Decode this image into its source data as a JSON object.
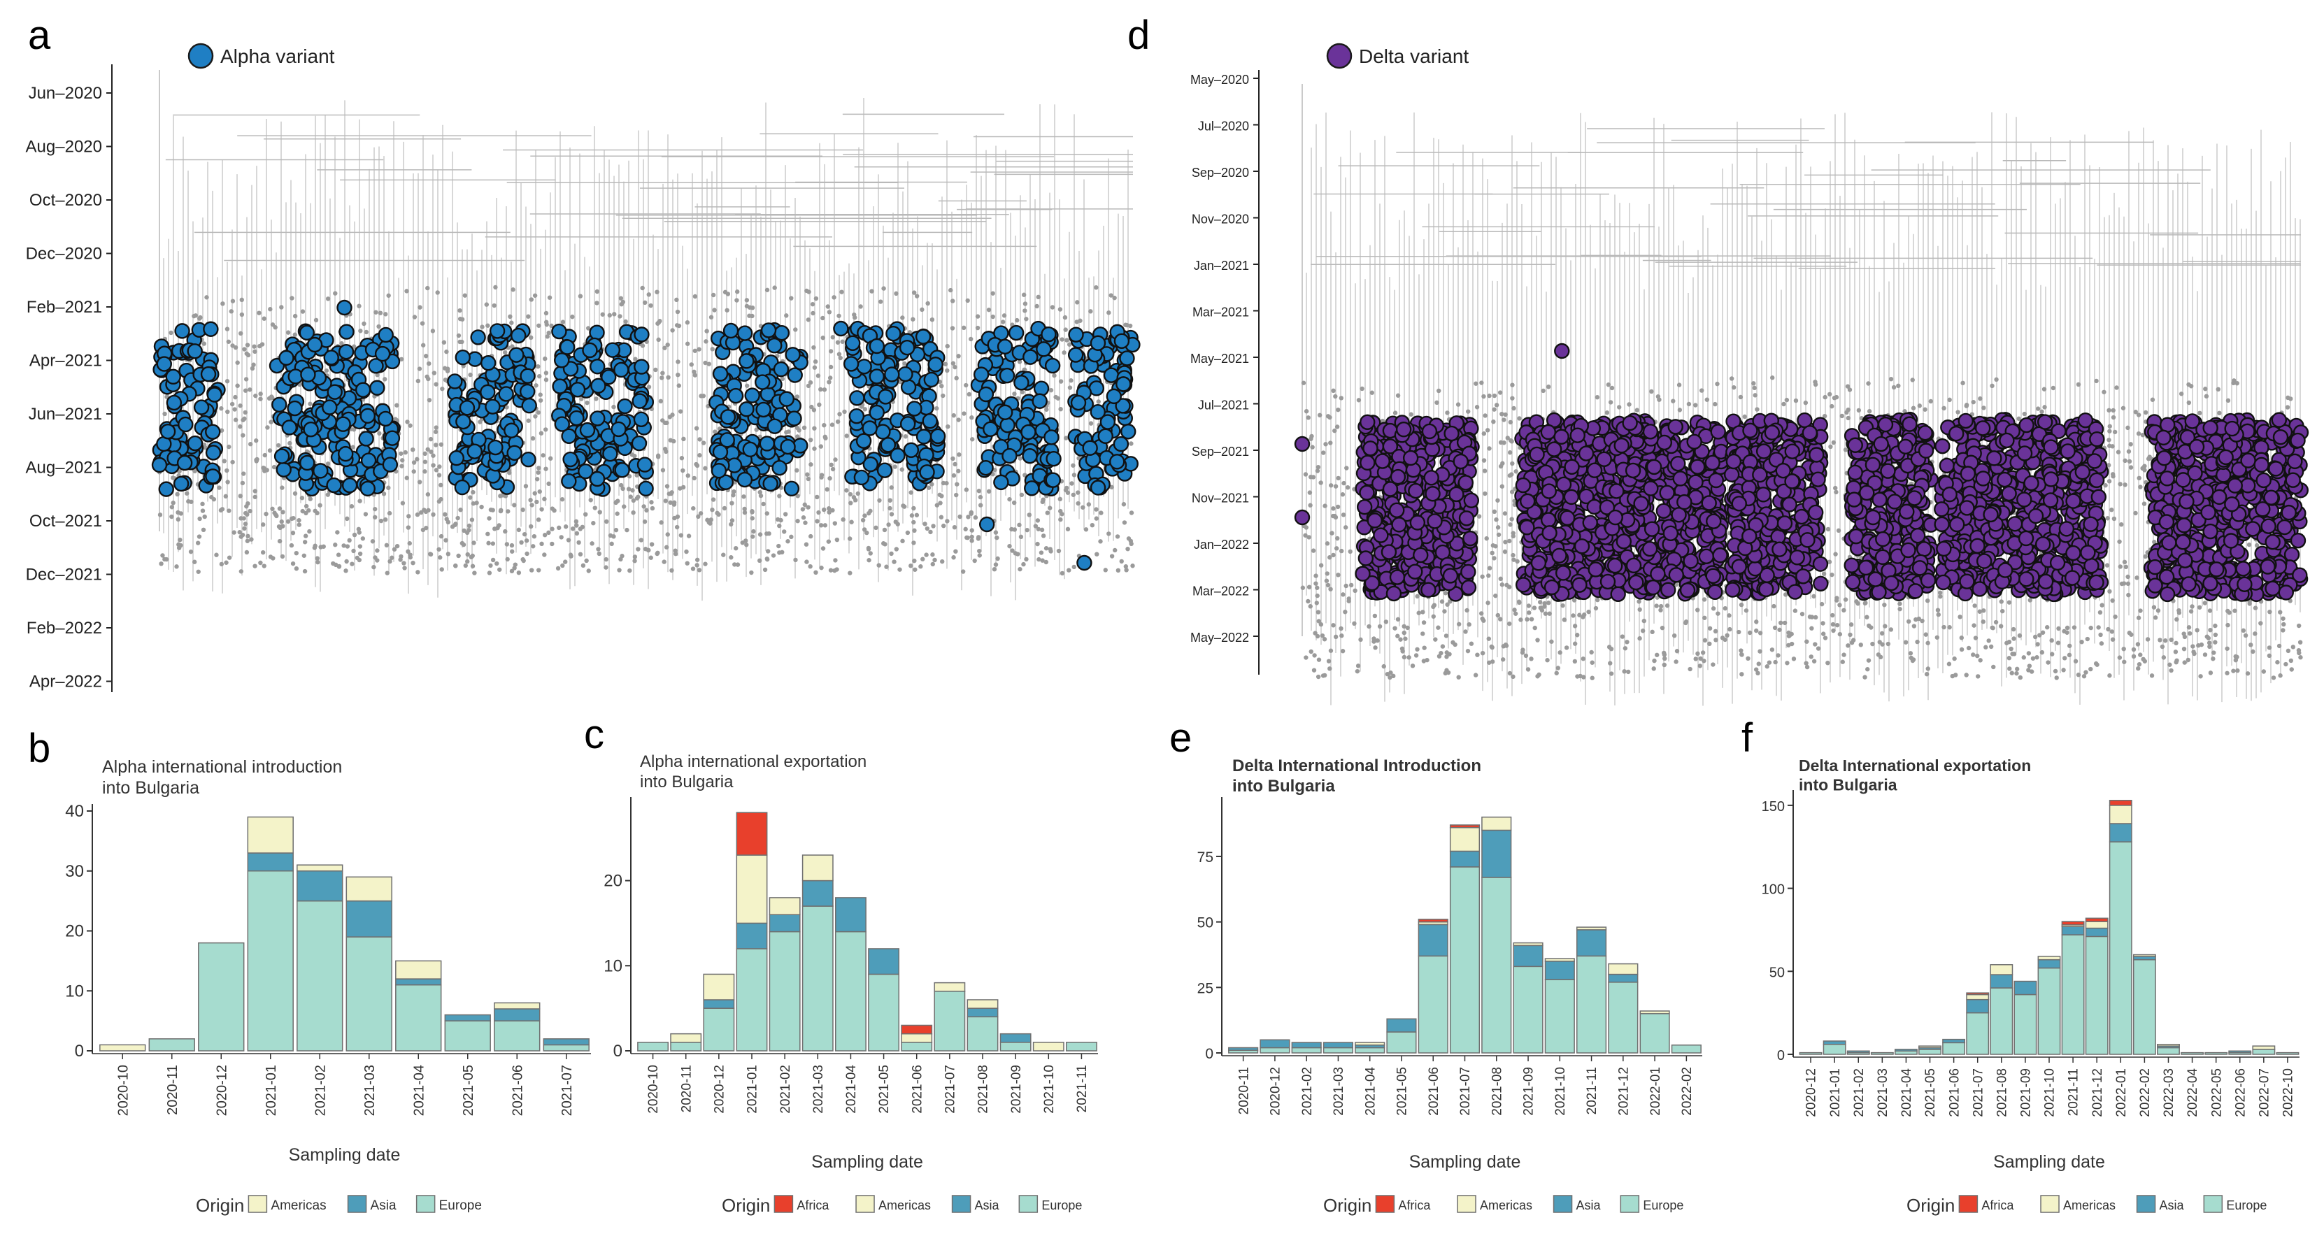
{
  "colors": {
    "alpha": "#1f7fc4",
    "delta": "#6a3399",
    "tree": "#b9b9b9",
    "tip": "#9a9a9a",
    "africa": "#e8402c",
    "americas": "#f4f3c9",
    "asia": "#4e9dba",
    "europe": "#a6dccf",
    "bar_outline": "#6f6f6f"
  },
  "chart_data": [
    {
      "panel": "a",
      "type": "scatter",
      "title": "Alpha variant",
      "legend": "Alpha variant",
      "y_tick_labels": [
        "Jun–2020",
        "Aug–2020",
        "Oct–2020",
        "Dec–2020",
        "Feb–2021",
        "Apr–2021",
        "Jun–2021",
        "Aug–2021",
        "Oct–2021",
        "Dec–2021",
        "Feb–2022",
        "Apr–2022"
      ],
      "highlight_cluster_ranges": [
        [
          0.0,
          0.06
        ],
        [
          0.12,
          0.24
        ],
        [
          0.3,
          0.38
        ],
        [
          0.41,
          0.5
        ],
        [
          0.57,
          0.66
        ],
        [
          0.71,
          0.8
        ],
        [
          0.84,
          0.92
        ],
        [
          0.94,
          1.0
        ]
      ]
    },
    {
      "panel": "d",
      "type": "scatter",
      "title": "Delta variant",
      "legend": "Delta variant",
      "y_tick_labels": [
        "May–2020",
        "Jul–2020",
        "Sep–2020",
        "Nov–2020",
        "Jan–2021",
        "Mar–2021",
        "May–2021",
        "Jul–2021",
        "Sep–2021",
        "Nov–2021",
        "Jan–2022",
        "Mar–2022",
        "May–2022"
      ],
      "highlight_cluster_ranges": [
        [
          0.06,
          0.17
        ],
        [
          0.22,
          0.42
        ],
        [
          0.43,
          0.52
        ],
        [
          0.55,
          0.63
        ],
        [
          0.64,
          0.8
        ],
        [
          0.85,
          1.0
        ]
      ]
    },
    {
      "panel": "b",
      "type": "bar",
      "title": "Alpha international introduction\ninto Bulgaria",
      "xlabel": "Sampling date",
      "ylabel": "",
      "ylim": [
        0,
        40
      ],
      "yticks": [
        0,
        10,
        20,
        30,
        40
      ],
      "categories": [
        "2020-10",
        "2020-11",
        "2020-12",
        "2021-01",
        "2021-02",
        "2021-03",
        "2021-04",
        "2021-05",
        "2021-06",
        "2021-07"
      ],
      "series": [
        {
          "name": "Europe",
          "values": [
            0,
            2,
            18,
            30,
            25,
            19,
            11,
            5,
            5,
            1
          ]
        },
        {
          "name": "Asia",
          "values": [
            0,
            0,
            0,
            3,
            5,
            6,
            1,
            1,
            2,
            1
          ]
        },
        {
          "name": "Americas",
          "values": [
            1,
            0,
            0,
            6,
            1,
            4,
            3,
            0,
            1,
            0
          ]
        }
      ],
      "legend_title": "Origin",
      "legend": [
        "Americas",
        "Asia",
        "Europe"
      ]
    },
    {
      "panel": "c",
      "type": "bar",
      "title": "Alpha international exportation\ninto Bulgaria",
      "xlabel": "Sampling date",
      "ylabel": "",
      "ylim": [
        0,
        29
      ],
      "yticks": [
        0,
        10,
        20
      ],
      "categories": [
        "2020-10",
        "2020-11",
        "2020-12",
        "2021-01",
        "2021-02",
        "2021-03",
        "2021-04",
        "2021-05",
        "2021-06",
        "2021-07",
        "2021-08",
        "2021-09",
        "2021-10",
        "2021-11"
      ],
      "series": [
        {
          "name": "Europe",
          "values": [
            1,
            1,
            5,
            12,
            14,
            17,
            14,
            9,
            1,
            7,
            4,
            1,
            0,
            1
          ]
        },
        {
          "name": "Asia",
          "values": [
            0,
            0,
            1,
            3,
            2,
            3,
            4,
            3,
            0,
            0,
            1,
            1,
            0,
            0
          ]
        },
        {
          "name": "Americas",
          "values": [
            0,
            1,
            3,
            8,
            2,
            3,
            0,
            0,
            1,
            1,
            1,
            0,
            1,
            0
          ]
        },
        {
          "name": "Africa",
          "values": [
            0,
            0,
            0,
            5,
            0,
            0,
            0,
            0,
            1,
            0,
            0,
            0,
            0,
            0
          ]
        }
      ],
      "legend_title": "Origin",
      "legend": [
        "Africa",
        "Americas",
        "Asia",
        "Europe"
      ]
    },
    {
      "panel": "e",
      "type": "bar",
      "title": "Delta International Introduction\ninto Bulgaria",
      "xlabel": "Sampling date",
      "ylabel": "",
      "ylim": [
        0,
        95
      ],
      "yticks": [
        0,
        25,
        50,
        75
      ],
      "categories": [
        "2020-11",
        "2020-12",
        "2021-02",
        "2021-03",
        "2021-04",
        "2021-05",
        "2021-06",
        "2021-07",
        "2021-08",
        "2021-09",
        "2021-10",
        "2021-11",
        "2021-12",
        "2022-01",
        "2022-02"
      ],
      "series": [
        {
          "name": "Europe",
          "values": [
            1,
            2,
            2,
            2,
            2,
            8,
            37,
            71,
            67,
            33,
            28,
            37,
            27,
            15,
            3
          ]
        },
        {
          "name": "Asia",
          "values": [
            1,
            3,
            2,
            2,
            1,
            5,
            12,
            6,
            18,
            8,
            7,
            10,
            3,
            0,
            0
          ]
        },
        {
          "name": "Americas",
          "values": [
            0,
            0,
            0,
            0,
            1,
            0,
            1,
            9,
            5,
            1,
            1,
            1,
            4,
            1,
            0
          ]
        },
        {
          "name": "Africa",
          "values": [
            0,
            0,
            0,
            0,
            0,
            0,
            1,
            1,
            0,
            0,
            0,
            0,
            0,
            0,
            0
          ]
        }
      ],
      "legend_title": "Origin",
      "legend": [
        "Africa",
        "Americas",
        "Asia",
        "Europe"
      ]
    },
    {
      "panel": "f",
      "type": "bar",
      "title": "Delta International exportation\ninto Bulgaria",
      "xlabel": "Sampling date",
      "ylabel": "",
      "ylim": [
        0,
        155
      ],
      "yticks": [
        0,
        50,
        100,
        150
      ],
      "categories": [
        "2020-12",
        "2021-01",
        "2021-02",
        "2021-03",
        "2021-04",
        "2021-05",
        "2021-06",
        "2021-07",
        "2021-08",
        "2021-09",
        "2021-10",
        "2021-11",
        "2021-12",
        "2022-01",
        "2022-02",
        "2022-03",
        "2022-04",
        "2022-05",
        "2022-06",
        "2022-07",
        "2022-10"
      ],
      "series": [
        {
          "name": "Europe",
          "values": [
            1,
            6,
            1,
            1,
            2,
            3,
            7,
            25,
            40,
            36,
            52,
            72,
            71,
            128,
            57,
            4,
            1,
            1,
            1,
            3,
            1
          ]
        },
        {
          "name": "Asia",
          "values": [
            0,
            2,
            1,
            0,
            1,
            1,
            2,
            8,
            8,
            8,
            5,
            5,
            5,
            11,
            2,
            1,
            0,
            0,
            1,
            0,
            0
          ]
        },
        {
          "name": "Americas",
          "values": [
            0,
            0,
            0,
            0,
            0,
            1,
            0,
            3,
            6,
            0,
            2,
            1,
            4,
            11,
            1,
            1,
            0,
            0,
            0,
            2,
            0
          ]
        },
        {
          "name": "Africa",
          "values": [
            0,
            0,
            0,
            0,
            0,
            0,
            0,
            1,
            0,
            0,
            0,
            2,
            2,
            3,
            0,
            0,
            0,
            0,
            0,
            0,
            0
          ]
        }
      ],
      "legend_title": "Origin",
      "legend": [
        "Africa",
        "Americas",
        "Asia",
        "Europe"
      ]
    }
  ]
}
